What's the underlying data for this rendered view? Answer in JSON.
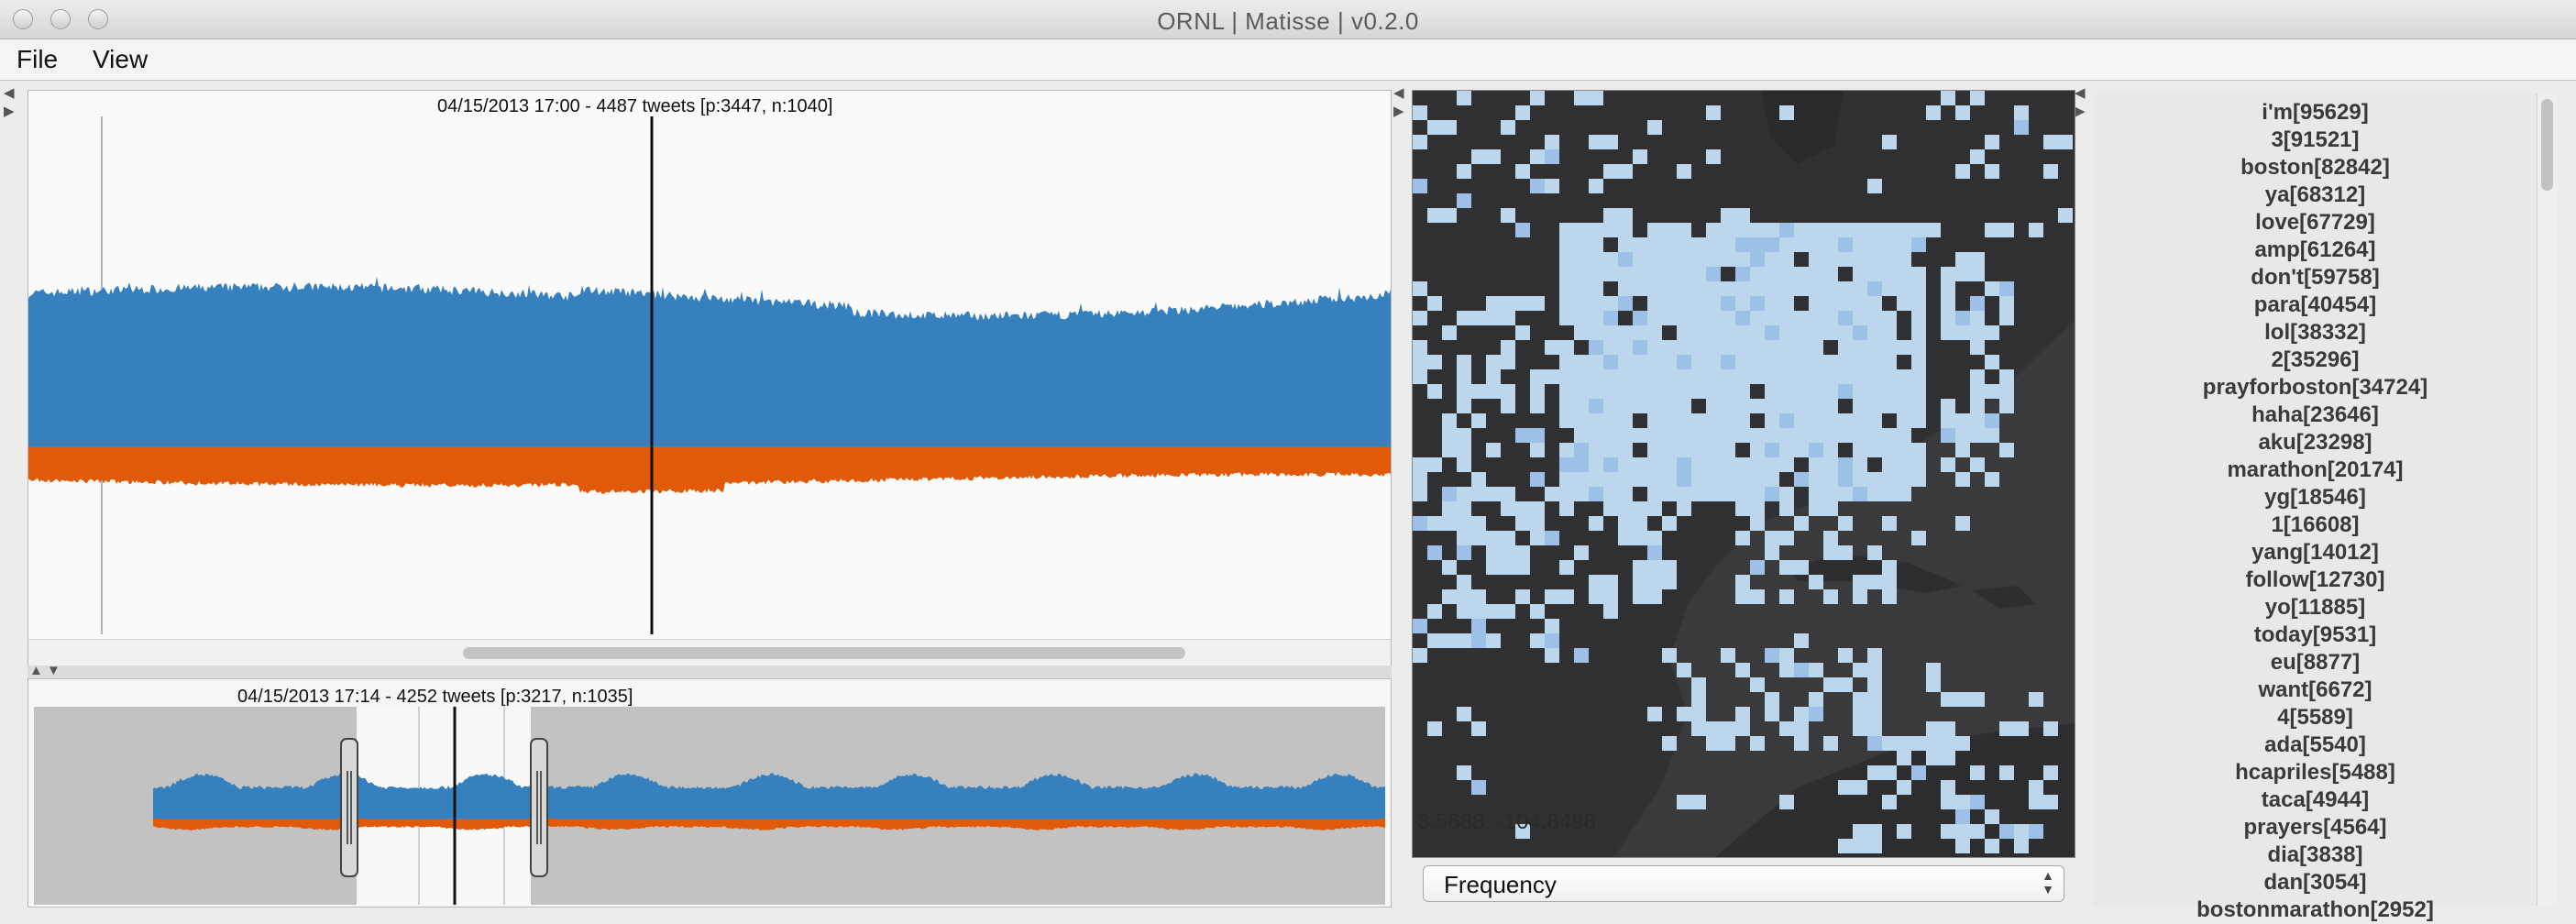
{
  "window": {
    "title": "ORNL | Matisse  | v0.2.0"
  },
  "menu": {
    "items": [
      "File",
      "View"
    ]
  },
  "timeline": {
    "title": "04/15/2013 17:00 - 4487 tweets [p:3447, n:1040]"
  },
  "overview": {
    "title": "04/15/2013 17:14 - 4252 tweets [p:3217, n:1035]"
  },
  "map": {
    "coordinate_readout": "3.5688, -104.8498"
  },
  "colors": {
    "positive": "#3580bd",
    "negative": "#e05a09",
    "map_background": "#3a3a3d",
    "map_land": "#323235",
    "map_cell": "#bcd6ee",
    "map_cell_dense": "#9cc0e6"
  },
  "metric_select": {
    "value": "Frequency"
  },
  "terms": [
    "i'm[95629]",
    "3[91521]",
    "boston[82842]",
    "ya[68312]",
    "love[67729]",
    "amp[61264]",
    "don't[59758]",
    "para[40454]",
    "lol[38332]",
    "2[35296]",
    "prayforboston[34724]",
    "haha[23646]",
    "aku[23298]",
    "marathon[20174]",
    "yg[18546]",
    "1[16608]",
    "yang[14012]",
    "follow[12730]",
    "yo[11885]",
    "today[9531]",
    "eu[8877]",
    "want[6672]",
    "4[5589]",
    "ada[5540]",
    "hcapriles[5488]",
    "taca[4944]",
    "prayers[4564]",
    "dia[3838]",
    "dan[3054]",
    "bostonmarathon[2952]"
  ],
  "icons": {
    "close": "traffic-light",
    "minimize": "traffic-light",
    "zoom": "traffic-light",
    "collapse_arrows": "triangle-left-right",
    "split_arrows": "triangle-up-down",
    "select_arrows": "up-down-caret"
  }
}
